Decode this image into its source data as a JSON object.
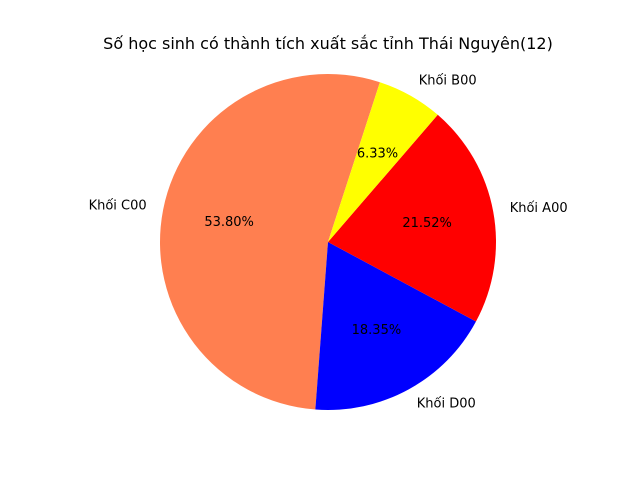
{
  "chart_data": {
    "type": "pie",
    "title": "Số học sinh có thành tích xuất sắc tỉnh Thái Nguyên(12)",
    "categories": [
      "Khối C00",
      "Khối D00",
      "Khối A00",
      "Khối B00"
    ],
    "values": [
      53.8,
      18.35,
      21.52,
      6.33
    ],
    "value_labels": [
      "53.80%",
      "18.35%",
      "21.52%",
      "6.33%"
    ],
    "colors": [
      "#ff7f50",
      "#0000ff",
      "#ff0000",
      "#ffff00"
    ],
    "start_angle_deg": 72,
    "legend": "none"
  }
}
